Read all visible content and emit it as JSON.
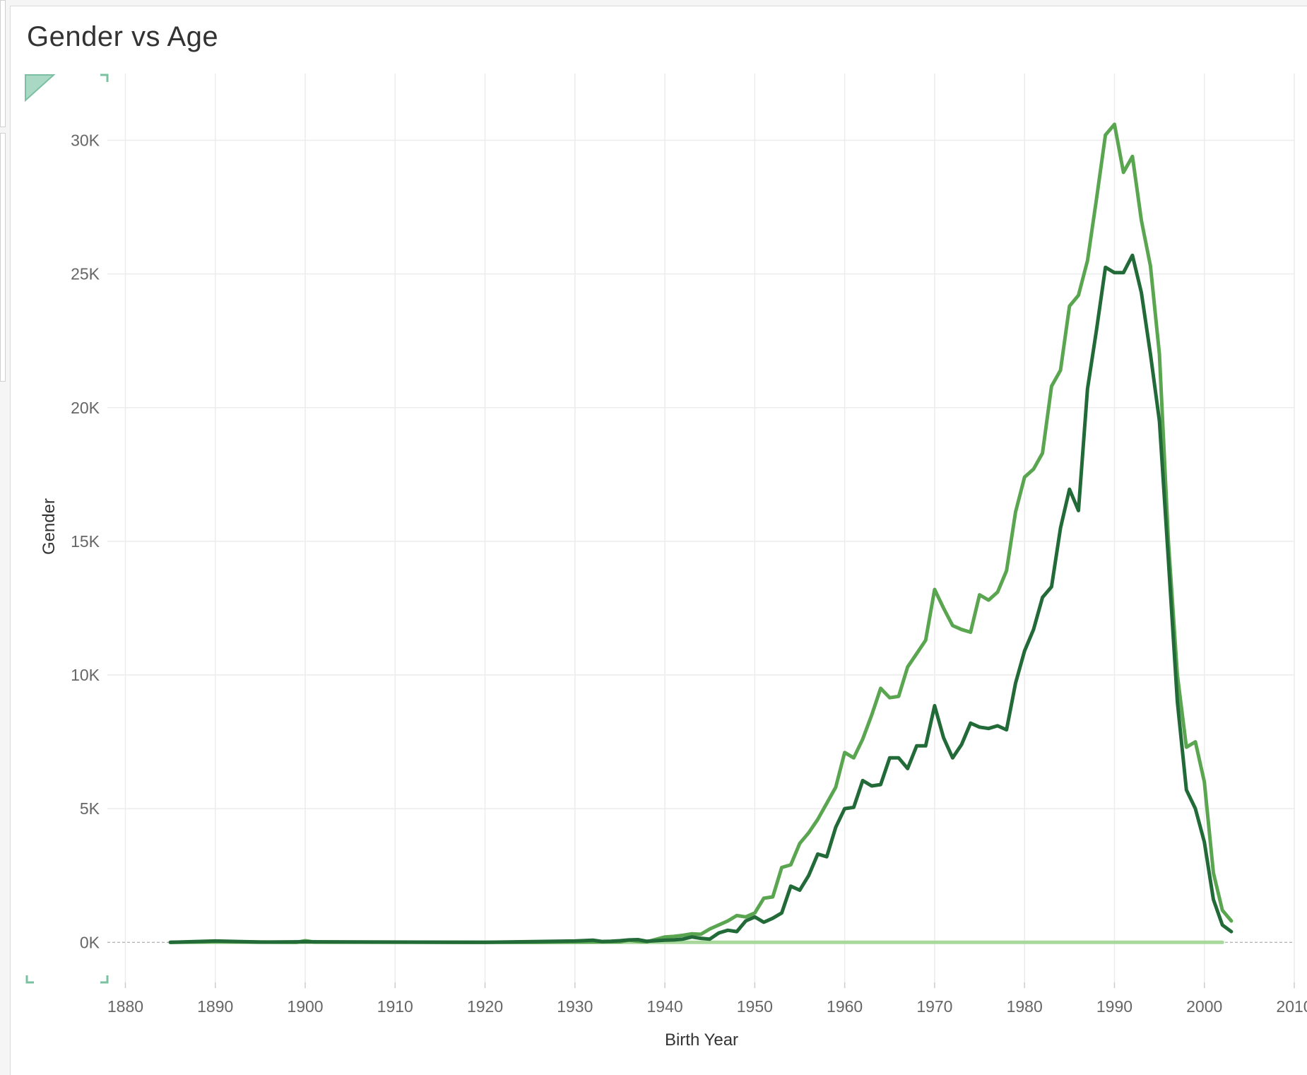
{
  "title": "Gender vs Age",
  "chart_data": {
    "type": "line",
    "title": "Gender vs Age",
    "xlabel": "Birth Year",
    "ylabel": "Gender",
    "xlim": [
      1878,
      2010
    ],
    "ylim": [
      -1500,
      32500
    ],
    "x_ticks": [
      1880,
      1890,
      1900,
      1910,
      1920,
      1930,
      1940,
      1950,
      1960,
      1970,
      1980,
      1990,
      2000,
      2010
    ],
    "y_ticks": [
      0,
      5000,
      10000,
      15000,
      20000,
      25000,
      30000
    ],
    "y_tick_labels": [
      "0K",
      "5K",
      "10K",
      "15K",
      "20K",
      "25K",
      "30K"
    ],
    "grid": true,
    "colors": [
      "#5aa550",
      "#226b38",
      "#a9d89c"
    ],
    "series": [
      {
        "values": [
          [
            1885,
            0
          ],
          [
            1889,
            20
          ],
          [
            1890,
            30
          ],
          [
            1895,
            10
          ],
          [
            1899,
            0
          ],
          [
            1900,
            60
          ],
          [
            1901,
            10
          ],
          [
            1920,
            0
          ],
          [
            1925,
            0
          ],
          [
            1930,
            10
          ],
          [
            1935,
            20
          ],
          [
            1936,
            80
          ],
          [
            1937,
            40
          ],
          [
            1938,
            20
          ],
          [
            1940,
            200
          ],
          [
            1941,
            220
          ],
          [
            1942,
            260
          ],
          [
            1943,
            320
          ],
          [
            1944,
            300
          ],
          [
            1945,
            500
          ],
          [
            1946,
            650
          ],
          [
            1947,
            800
          ],
          [
            1948,
            1000
          ],
          [
            1949,
            950
          ],
          [
            1950,
            1100
          ],
          [
            1951,
            1650
          ],
          [
            1952,
            1700
          ],
          [
            1953,
            2800
          ],
          [
            1954,
            2900
          ],
          [
            1955,
            3700
          ],
          [
            1956,
            4100
          ],
          [
            1957,
            4600
          ],
          [
            1958,
            5200
          ],
          [
            1959,
            5800
          ],
          [
            1960,
            7100
          ],
          [
            1961,
            6900
          ],
          [
            1962,
            7600
          ],
          [
            1963,
            8500
          ],
          [
            1964,
            9500
          ],
          [
            1965,
            9150
          ],
          [
            1966,
            9200
          ],
          [
            1967,
            10300
          ],
          [
            1968,
            10800
          ],
          [
            1969,
            11300
          ],
          [
            1970,
            13200
          ],
          [
            1971,
            12500
          ],
          [
            1972,
            11850
          ],
          [
            1973,
            11700
          ],
          [
            1974,
            11600
          ],
          [
            1975,
            13000
          ],
          [
            1976,
            12800
          ],
          [
            1977,
            13100
          ],
          [
            1978,
            13900
          ],
          [
            1979,
            16100
          ],
          [
            1980,
            17400
          ],
          [
            1981,
            17700
          ],
          [
            1982,
            18300
          ],
          [
            1983,
            20800
          ],
          [
            1984,
            21400
          ],
          [
            1985,
            23800
          ],
          [
            1986,
            24200
          ],
          [
            1987,
            25500
          ],
          [
            1988,
            27800
          ],
          [
            1989,
            30200
          ],
          [
            1990,
            30600
          ],
          [
            1991,
            28800
          ],
          [
            1992,
            29400
          ],
          [
            1993,
            27000
          ],
          [
            1994,
            25300
          ],
          [
            1995,
            22000
          ],
          [
            1996,
            15000
          ],
          [
            1997,
            10000
          ],
          [
            1998,
            7300
          ],
          [
            1999,
            7500
          ],
          [
            2000,
            6000
          ],
          [
            2001,
            2600
          ],
          [
            2002,
            1200
          ],
          [
            2003,
            800
          ]
        ]
      },
      {
        "values": [
          [
            1885,
            0
          ],
          [
            1889,
            40
          ],
          [
            1890,
            50
          ],
          [
            1895,
            10
          ],
          [
            1900,
            20
          ],
          [
            1920,
            0
          ],
          [
            1930,
            50
          ],
          [
            1932,
            80
          ],
          [
            1933,
            30
          ],
          [
            1934,
            40
          ],
          [
            1935,
            60
          ],
          [
            1936,
            90
          ],
          [
            1937,
            100
          ],
          [
            1938,
            40
          ],
          [
            1940,
            80
          ],
          [
            1941,
            90
          ],
          [
            1942,
            120
          ],
          [
            1943,
            200
          ],
          [
            1944,
            150
          ],
          [
            1945,
            120
          ],
          [
            1946,
            350
          ],
          [
            1947,
            450
          ],
          [
            1948,
            400
          ],
          [
            1949,
            800
          ],
          [
            1950,
            950
          ],
          [
            1951,
            750
          ],
          [
            1952,
            900
          ],
          [
            1953,
            1100
          ],
          [
            1954,
            2100
          ],
          [
            1955,
            1950
          ],
          [
            1956,
            2500
          ],
          [
            1957,
            3300
          ],
          [
            1958,
            3200
          ],
          [
            1959,
            4300
          ],
          [
            1960,
            5000
          ],
          [
            1961,
            5050
          ],
          [
            1962,
            6050
          ],
          [
            1963,
            5850
          ],
          [
            1964,
            5900
          ],
          [
            1965,
            6900
          ],
          [
            1966,
            6900
          ],
          [
            1967,
            6500
          ],
          [
            1968,
            7350
          ],
          [
            1969,
            7350
          ],
          [
            1970,
            8850
          ],
          [
            1971,
            7650
          ],
          [
            1972,
            6900
          ],
          [
            1973,
            7400
          ],
          [
            1974,
            8200
          ],
          [
            1975,
            8050
          ],
          [
            1976,
            8000
          ],
          [
            1977,
            8100
          ],
          [
            1978,
            7950
          ],
          [
            1979,
            9700
          ],
          [
            1980,
            10900
          ],
          [
            1981,
            11700
          ],
          [
            1982,
            12900
          ],
          [
            1983,
            13300
          ],
          [
            1984,
            15500
          ],
          [
            1985,
            16950
          ],
          [
            1986,
            16150
          ],
          [
            1987,
            20700
          ],
          [
            1988,
            22900
          ],
          [
            1989,
            25250
          ],
          [
            1990,
            25050
          ],
          [
            1991,
            25050
          ],
          [
            1992,
            25700
          ],
          [
            1993,
            24300
          ],
          [
            1994,
            22000
          ],
          [
            1995,
            19500
          ],
          [
            1996,
            14300
          ],
          [
            1997,
            9000
          ],
          [
            1998,
            5700
          ],
          [
            1999,
            5000
          ],
          [
            2000,
            3750
          ],
          [
            2001,
            1600
          ],
          [
            2002,
            650
          ],
          [
            2003,
            400
          ]
        ]
      },
      {
        "values": [
          [
            1885,
            0
          ],
          [
            2002,
            0
          ]
        ]
      }
    ]
  }
}
